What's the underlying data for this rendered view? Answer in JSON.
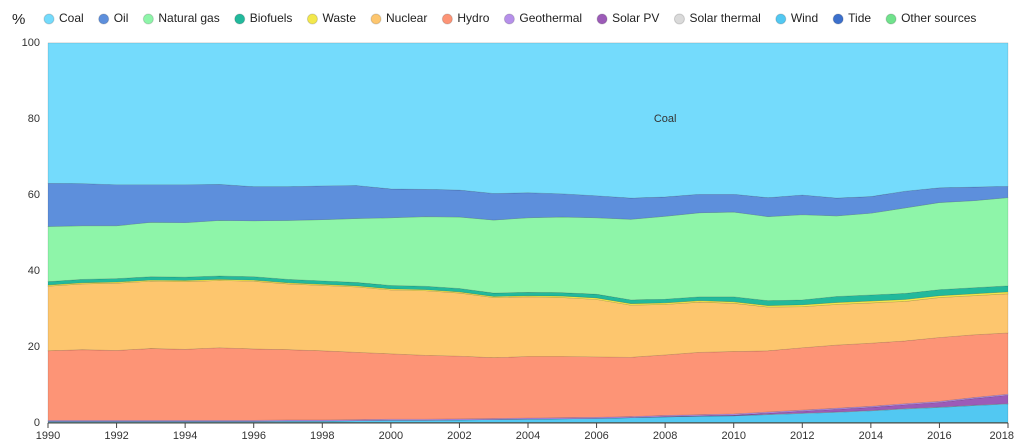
{
  "chart_data": {
    "type": "stacked_area",
    "y_label": "%",
    "x": [
      1990,
      1991,
      1992,
      1993,
      1994,
      1995,
      1996,
      1997,
      1998,
      1999,
      2000,
      2001,
      2002,
      2003,
      2004,
      2005,
      2006,
      2007,
      2008,
      2009,
      2010,
      2011,
      2012,
      2013,
      2014,
      2015,
      2016,
      2017,
      2018
    ],
    "xlim": [
      1990,
      2018
    ],
    "xticks": [
      1990,
      1992,
      1994,
      1996,
      1998,
      2000,
      2002,
      2004,
      2006,
      2008,
      2010,
      2012,
      2014,
      2016,
      2018
    ],
    "ylim": [
      0,
      100
    ],
    "yticks": [
      0,
      20,
      40,
      60,
      80,
      100
    ],
    "grid": true,
    "legend": "top",
    "annotations": [
      {
        "text": "Coal",
        "x": 2008,
        "y": 80
      }
    ],
    "series": [
      {
        "name": "Coal",
        "color": "#74dbfc",
        "values": [
          36.9,
          37.0,
          37.3,
          37.3,
          37.3,
          37.2,
          37.8,
          37.8,
          37.6,
          37.5,
          38.4,
          38.5,
          38.7,
          39.6,
          39.4,
          39.7,
          40.2,
          40.8,
          40.5,
          39.8,
          39.8,
          40.7,
          40.0,
          40.8,
          40.4,
          39.0,
          38.1,
          37.9,
          37.7
        ]
      },
      {
        "name": "Oil",
        "color": "#5d8fdc",
        "values": [
          11.4,
          11.1,
          10.8,
          9.9,
          10.0,
          9.5,
          9.0,
          8.9,
          8.9,
          8.7,
          7.6,
          7.2,
          7.1,
          7.0,
          6.6,
          6.1,
          5.8,
          5.6,
          5.1,
          4.9,
          4.7,
          5.0,
          5.2,
          4.7,
          4.4,
          4.4,
          3.9,
          3.6,
          3.0
        ]
      },
      {
        "name": "Natural gas",
        "color": "#8ef5a9",
        "values": [
          14.5,
          14.1,
          13.9,
          14.3,
          14.3,
          14.6,
          14.7,
          15.5,
          16.1,
          16.8,
          17.8,
          18.3,
          18.8,
          19.2,
          19.6,
          19.9,
          20.1,
          21.2,
          21.8,
          22.1,
          22.3,
          22.1,
          22.4,
          21.2,
          21.5,
          22.5,
          22.9,
          22.9,
          23.2
        ]
      },
      {
        "name": "Biofuels",
        "color": "#22b99c",
        "values": [
          0.9,
          0.9,
          0.9,
          0.9,
          0.9,
          0.9,
          0.9,
          0.9,
          0.9,
          0.9,
          0.9,
          0.9,
          0.9,
          0.9,
          0.9,
          0.9,
          1.0,
          1.0,
          1.0,
          1.0,
          1.3,
          1.3,
          1.3,
          1.6,
          1.6,
          1.6,
          1.6,
          1.6,
          1.6
        ]
      },
      {
        "name": "Waste",
        "color": "#f3e84c",
        "values": [
          0.3,
          0.3,
          0.3,
          0.3,
          0.3,
          0.3,
          0.3,
          0.3,
          0.3,
          0.3,
          0.3,
          0.3,
          0.3,
          0.3,
          0.3,
          0.4,
          0.4,
          0.4,
          0.4,
          0.4,
          0.4,
          0.4,
          0.5,
          0.5,
          0.5,
          0.5,
          0.5,
          0.5,
          0.5
        ]
      },
      {
        "name": "Nuclear",
        "color": "#fdc66e",
        "values": [
          17.0,
          17.3,
          17.7,
          17.7,
          17.8,
          17.7,
          17.8,
          17.3,
          17.2,
          17.2,
          16.8,
          17.0,
          16.6,
          15.8,
          15.7,
          15.5,
          15.1,
          13.7,
          13.3,
          13.2,
          12.7,
          11.5,
          10.8,
          10.7,
          10.6,
          10.4,
          10.5,
          10.3,
          10.3
        ]
      },
      {
        "name": "Hydro",
        "color": "#fd9476",
        "values": [
          18.3,
          18.6,
          18.4,
          18.9,
          18.7,
          19.1,
          18.8,
          18.5,
          18.2,
          17.7,
          17.2,
          16.8,
          16.5,
          16.0,
          16.2,
          16.1,
          15.9,
          15.6,
          15.9,
          16.4,
          16.4,
          16.1,
          16.4,
          16.6,
          16.6,
          16.5,
          16.8,
          16.5,
          16.1
        ]
      },
      {
        "name": "Geothermal",
        "color": "#b690ea",
        "values": [
          0.3,
          0.3,
          0.3,
          0.3,
          0.3,
          0.3,
          0.3,
          0.3,
          0.3,
          0.3,
          0.3,
          0.3,
          0.3,
          0.3,
          0.3,
          0.3,
          0.3,
          0.3,
          0.3,
          0.3,
          0.3,
          0.3,
          0.3,
          0.3,
          0.3,
          0.3,
          0.3,
          0.3,
          0.3
        ]
      },
      {
        "name": "Solar PV",
        "color": "#9c5bb8",
        "values": [
          0,
          0,
          0,
          0,
          0,
          0,
          0,
          0,
          0,
          0,
          0,
          0,
          0,
          0,
          0,
          0,
          0,
          0,
          0.1,
          0.1,
          0.2,
          0.3,
          0.5,
          0.7,
          0.8,
          1.0,
          1.2,
          1.7,
          2.2
        ]
      },
      {
        "name": "Solar thermal",
        "color": "#dadada",
        "values": [
          0,
          0,
          0,
          0,
          0,
          0,
          0,
          0,
          0,
          0,
          0,
          0,
          0,
          0,
          0,
          0,
          0,
          0,
          0,
          0,
          0,
          0.1,
          0.1,
          0.1,
          0.1,
          0.1,
          0.1,
          0.1,
          0.1
        ]
      },
      {
        "name": "Wind",
        "color": "#52c8f2",
        "values": [
          0.2,
          0.2,
          0.2,
          0.2,
          0.2,
          0.2,
          0.2,
          0.3,
          0.3,
          0.4,
          0.5,
          0.5,
          0.6,
          0.7,
          0.8,
          0.9,
          1.0,
          1.2,
          1.4,
          1.6,
          1.7,
          2.0,
          2.3,
          2.6,
          3.0,
          3.5,
          3.9,
          4.4,
          4.8
        ]
      },
      {
        "name": "Tide",
        "color": "#3c70cc",
        "values": [
          0,
          0,
          0,
          0,
          0,
          0,
          0,
          0,
          0,
          0,
          0,
          0,
          0,
          0,
          0,
          0,
          0,
          0,
          0,
          0,
          0,
          0,
          0,
          0,
          0,
          0,
          0,
          0,
          0
        ]
      },
      {
        "name": "Other sources",
        "color": "#70e28c",
        "values": [
          0.2,
          0.2,
          0.2,
          0.2,
          0.2,
          0.2,
          0.2,
          0.2,
          0.2,
          0.2,
          0.2,
          0.2,
          0.2,
          0.2,
          0.2,
          0.2,
          0.2,
          0.2,
          0.2,
          0.2,
          0.2,
          0.2,
          0.2,
          0.2,
          0.2,
          0.2,
          0.2,
          0.2,
          0.2
        ]
      }
    ]
  }
}
